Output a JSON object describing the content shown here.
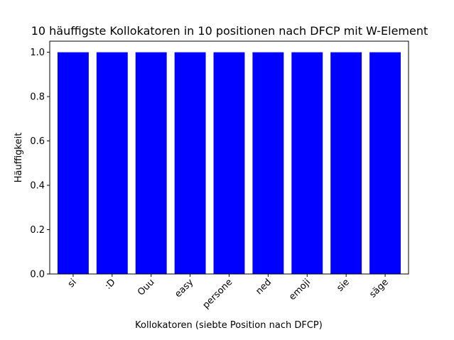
{
  "chart_data": {
    "type": "bar",
    "title": "10 häuffigste Kollokatoren in 10 positionen nach DFCP mit W-Element",
    "xlabel": "Kollokatoren (siebte Position nach DFCP)",
    "ylabel": "Häuffigkeit",
    "categories": [
      "si",
      ":D",
      "Ouu",
      "easy",
      "persone",
      "ned",
      "emoji",
      "sie",
      "säge"
    ],
    "values": [
      1,
      1,
      1,
      1,
      1,
      1,
      1,
      1,
      1
    ],
    "ylim": [
      0,
      1.05
    ],
    "yticks": [
      "0.0",
      "0.2",
      "0.4",
      "0.6",
      "0.8",
      "1.0"
    ],
    "bar_color": "#0000ff",
    "grid": false
  }
}
